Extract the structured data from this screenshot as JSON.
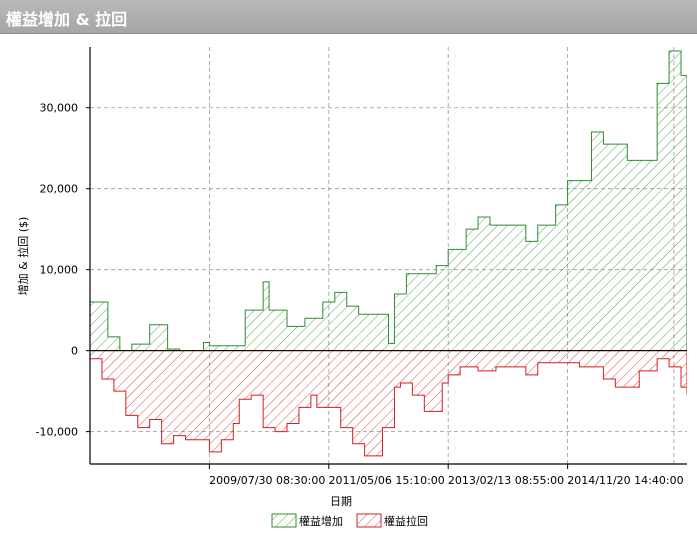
{
  "window": {
    "title": "權益增加 & 拉回"
  },
  "colors": {
    "gain": "#2e8b2e",
    "drawdown": "#d21f1f",
    "grid": "#999999"
  },
  "chart_data": {
    "type": "area",
    "xlabel": "日期",
    "ylabel": "增加 & 拉回 ($)",
    "x_ticks": [
      "2009/07/30 08:30:00",
      "2011/05/06 15:10:00",
      "2013/02/13 08:55:00",
      "2014/11/20 14:40:00"
    ],
    "y_ticks": [
      {
        "value": 30000,
        "label": "30,000"
      },
      {
        "value": 20000,
        "label": "20,000"
      },
      {
        "value": 10000,
        "label": "10,000"
      },
      {
        "value": 0,
        "label": "0"
      },
      {
        "value": -10000,
        "label": "-10,000"
      }
    ],
    "ylim": [
      -14000,
      37500
    ],
    "grid": true,
    "legend_position": "bottom",
    "series": [
      {
        "name": "權益增加",
        "x": [
          0,
          0.03,
          0.05,
          0.07,
          0.1,
          0.13,
          0.15,
          0.19,
          0.2,
          0.25,
          0.26,
          0.29,
          0.3,
          0.33,
          0.36,
          0.39,
          0.41,
          0.43,
          0.45,
          0.5,
          0.51,
          0.53,
          0.54,
          0.58,
          0.6,
          0.63,
          0.65,
          0.67,
          0.7,
          0.73,
          0.75,
          0.78,
          0.8,
          0.84,
          0.86,
          0.88,
          0.9,
          0.92,
          0.95,
          0.97,
          0.99,
          1
        ],
        "y": [
          6000,
          1700,
          0,
          800,
          3200,
          200,
          0,
          1000,
          600,
          600,
          5000,
          8500,
          5000,
          3000,
          4000,
          6000,
          7200,
          5500,
          4500,
          900,
          7000,
          9500,
          9500,
          10500,
          12500,
          15000,
          16500,
          15500,
          15500,
          13500,
          15500,
          18000,
          21000,
          27000,
          25500,
          25500,
          23500,
          23500,
          33000,
          37000,
          34000,
          32500
        ]
      },
      {
        "name": "權益拉回",
        "x": [
          0,
          0.02,
          0.04,
          0.06,
          0.08,
          0.1,
          0.12,
          0.14,
          0.16,
          0.18,
          0.2,
          0.22,
          0.24,
          0.25,
          0.27,
          0.29,
          0.31,
          0.33,
          0.35,
          0.37,
          0.38,
          0.4,
          0.42,
          0.44,
          0.46,
          0.49,
          0.51,
          0.52,
          0.54,
          0.56,
          0.59,
          0.6,
          0.62,
          0.65,
          0.68,
          0.7,
          0.73,
          0.75,
          0.78,
          0.8,
          0.82,
          0.84,
          0.86,
          0.88,
          0.9,
          0.92,
          0.95,
          0.97,
          0.99,
          1
        ],
        "y": [
          -1000,
          -3500,
          -5000,
          -8000,
          -9500,
          -8500,
          -11500,
          -10500,
          -11000,
          -11000,
          -12500,
          -11000,
          -9000,
          -6000,
          -5500,
          -9500,
          -10000,
          -9000,
          -7000,
          -5500,
          -7000,
          -7000,
          -9500,
          -11500,
          -13000,
          -9500,
          -4500,
          -4000,
          -5500,
          -7500,
          -4000,
          -3000,
          -2000,
          -2500,
          -2000,
          -2000,
          -3000,
          -1500,
          -1500,
          -1500,
          -2000,
          -2000,
          -3500,
          -4500,
          -4500,
          -2500,
          -1000,
          -2000,
          -4500,
          -5500
        ]
      }
    ]
  }
}
